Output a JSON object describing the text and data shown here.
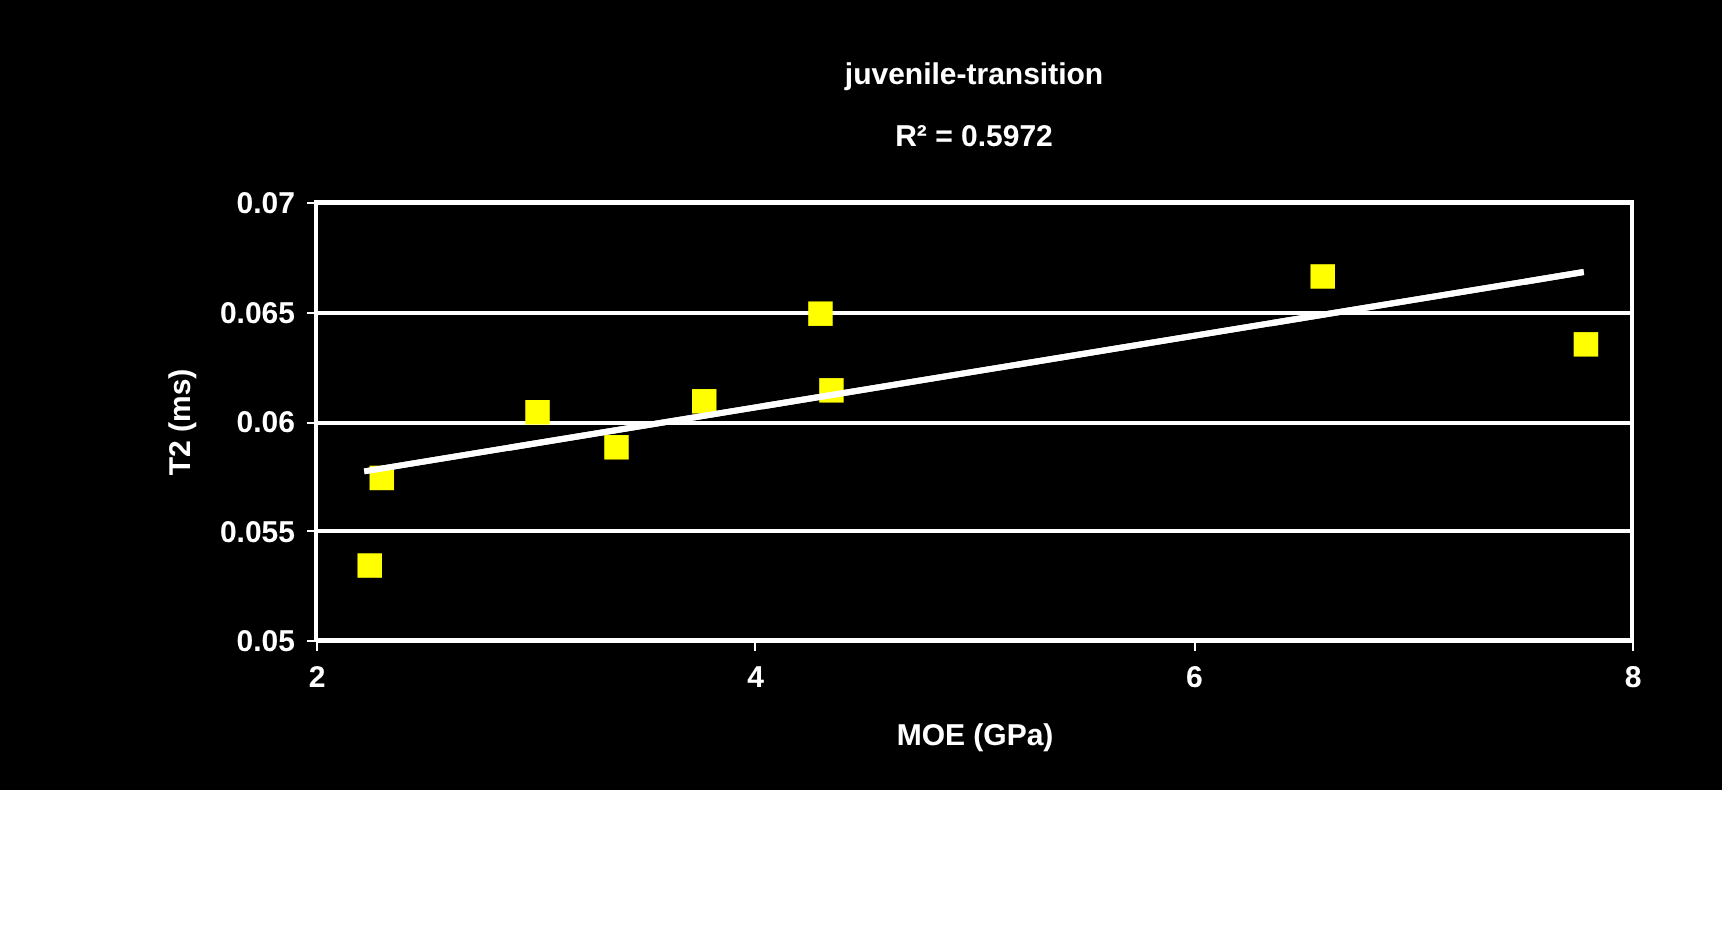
{
  "chart_data": {
    "type": "scatter",
    "title": "juvenile-transition",
    "subtitle": "R² = 0.5972",
    "xlabel": "MOE (GPa)",
    "ylabel": "T2 (ms)",
    "series": [
      {
        "marker": "square",
        "color": "#ffff00",
        "x": [
          2.245,
          2.3,
          3.01,
          3.37,
          3.77,
          4.3,
          4.35,
          6.59,
          7.79
        ],
        "values": [
          0.0534,
          0.0574,
          0.0604,
          0.0588,
          0.0609,
          0.0649,
          0.0614,
          0.0666,
          0.0635
        ]
      },
      {
        "type": "line",
        "marker": "none",
        "color": "#ffffff",
        "x": [
          2.22,
          7.78
        ],
        "values": [
          0.0577,
          0.0668
        ]
      }
    ],
    "xlim": [
      2,
      8
    ],
    "xticks": [
      2,
      4,
      6,
      8
    ],
    "ylim": [
      0.05,
      0.07
    ],
    "yticks": [
      0.05,
      0.055,
      0.06,
      0.065,
      0.07
    ],
    "grid": "y"
  }
}
